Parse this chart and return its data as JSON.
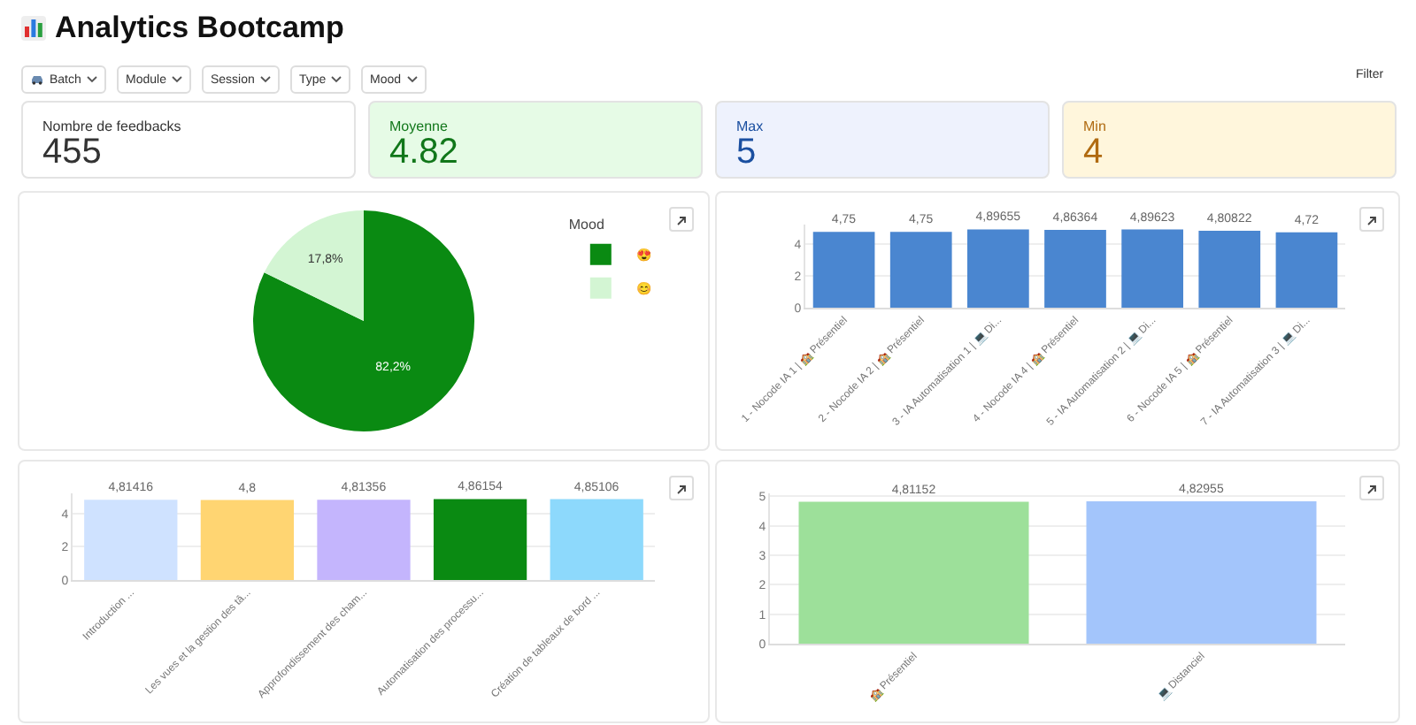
{
  "chart_data": [
    {
      "type": "other",
      "title": "Analytics Bootcamp",
      "annotations": [
        "Batch",
        "Module",
        "Session",
        "Type",
        "Mood",
        "Filter",
        "Nombre de feedbacks",
        "455",
        "Moyenne",
        "4.82",
        "Max",
        "5",
        "Min",
        "4"
      ],
      "colors": [
        "#333333",
        "#11771a",
        "#1a4fa0",
        "#b06a10"
      ]
    },
    {
      "type": "pie",
      "legend_title": "Mood",
      "categories": [
        "😍",
        "😊"
      ],
      "values": [
        82.2,
        17.8
      ],
      "value_labels": [
        "82,2%",
        "17,8%"
      ],
      "colors": [
        "#0a8a12",
        "#d3f5d3"
      ],
      "legend": "top right"
    },
    {
      "type": "bar",
      "categories": [
        "1 - Nocode IA 1 | 🏫 Présentiel",
        "2 - Nocode IA 2 | 🏫 Présentiel",
        "3 - IA Automatisation 1 | 💻 Di...",
        "4 - Nocode IA 4 | 🏫 Présentiel",
        "5 - IA Automatisation 2 | 💻 Di...",
        "6 - Nocode IA 5 | 🏫 Présentiel",
        "7 - IA Automatisation 3 | 💻 Di..."
      ],
      "values": [
        4.75,
        4.75,
        4.89655,
        4.86364,
        4.89623,
        4.80822,
        4.72
      ],
      "value_labels": [
        "4,75",
        "4,75",
        "4,89655",
        "4,86364",
        "4,89623",
        "4,80822",
        "4,72"
      ],
      "color": "#4a86d0",
      "ylim": [
        0,
        5.2
      ],
      "yticks": [
        0,
        2,
        4
      ],
      "grid": "y"
    },
    {
      "type": "bar",
      "categories": [
        "Introduction ...",
        "Les vues et la gestion des tâ...",
        "Approfondissement des cham...",
        "Automatisation des processu...",
        "Création de tableaux de bord ..."
      ],
      "values": [
        4.81416,
        4.8,
        4.81356,
        4.86154,
        4.85106
      ],
      "value_labels": [
        "4,81416",
        "4,8",
        "4,81356",
        "4,86154",
        "4,85106"
      ],
      "colors": [
        "#cfe2ff",
        "#ffd572",
        "#c4b5fd",
        "#0a8a12",
        "#8dd9fc"
      ],
      "ylim": [
        0,
        5.2
      ],
      "yticks": [
        0,
        2,
        4
      ],
      "grid": "y"
    },
    {
      "type": "bar",
      "categories": [
        "🏫 Présentiel",
        "💻 Distanciel"
      ],
      "values": [
        4.81152,
        4.82955
      ],
      "value_labels": [
        "4,81152",
        "4,82955"
      ],
      "colors": [
        "#9de09a",
        "#a3c5fb"
      ],
      "ylim": [
        0,
        5.1
      ],
      "yticks": [
        0,
        1,
        2,
        3,
        4,
        5
      ],
      "grid": "y"
    }
  ]
}
